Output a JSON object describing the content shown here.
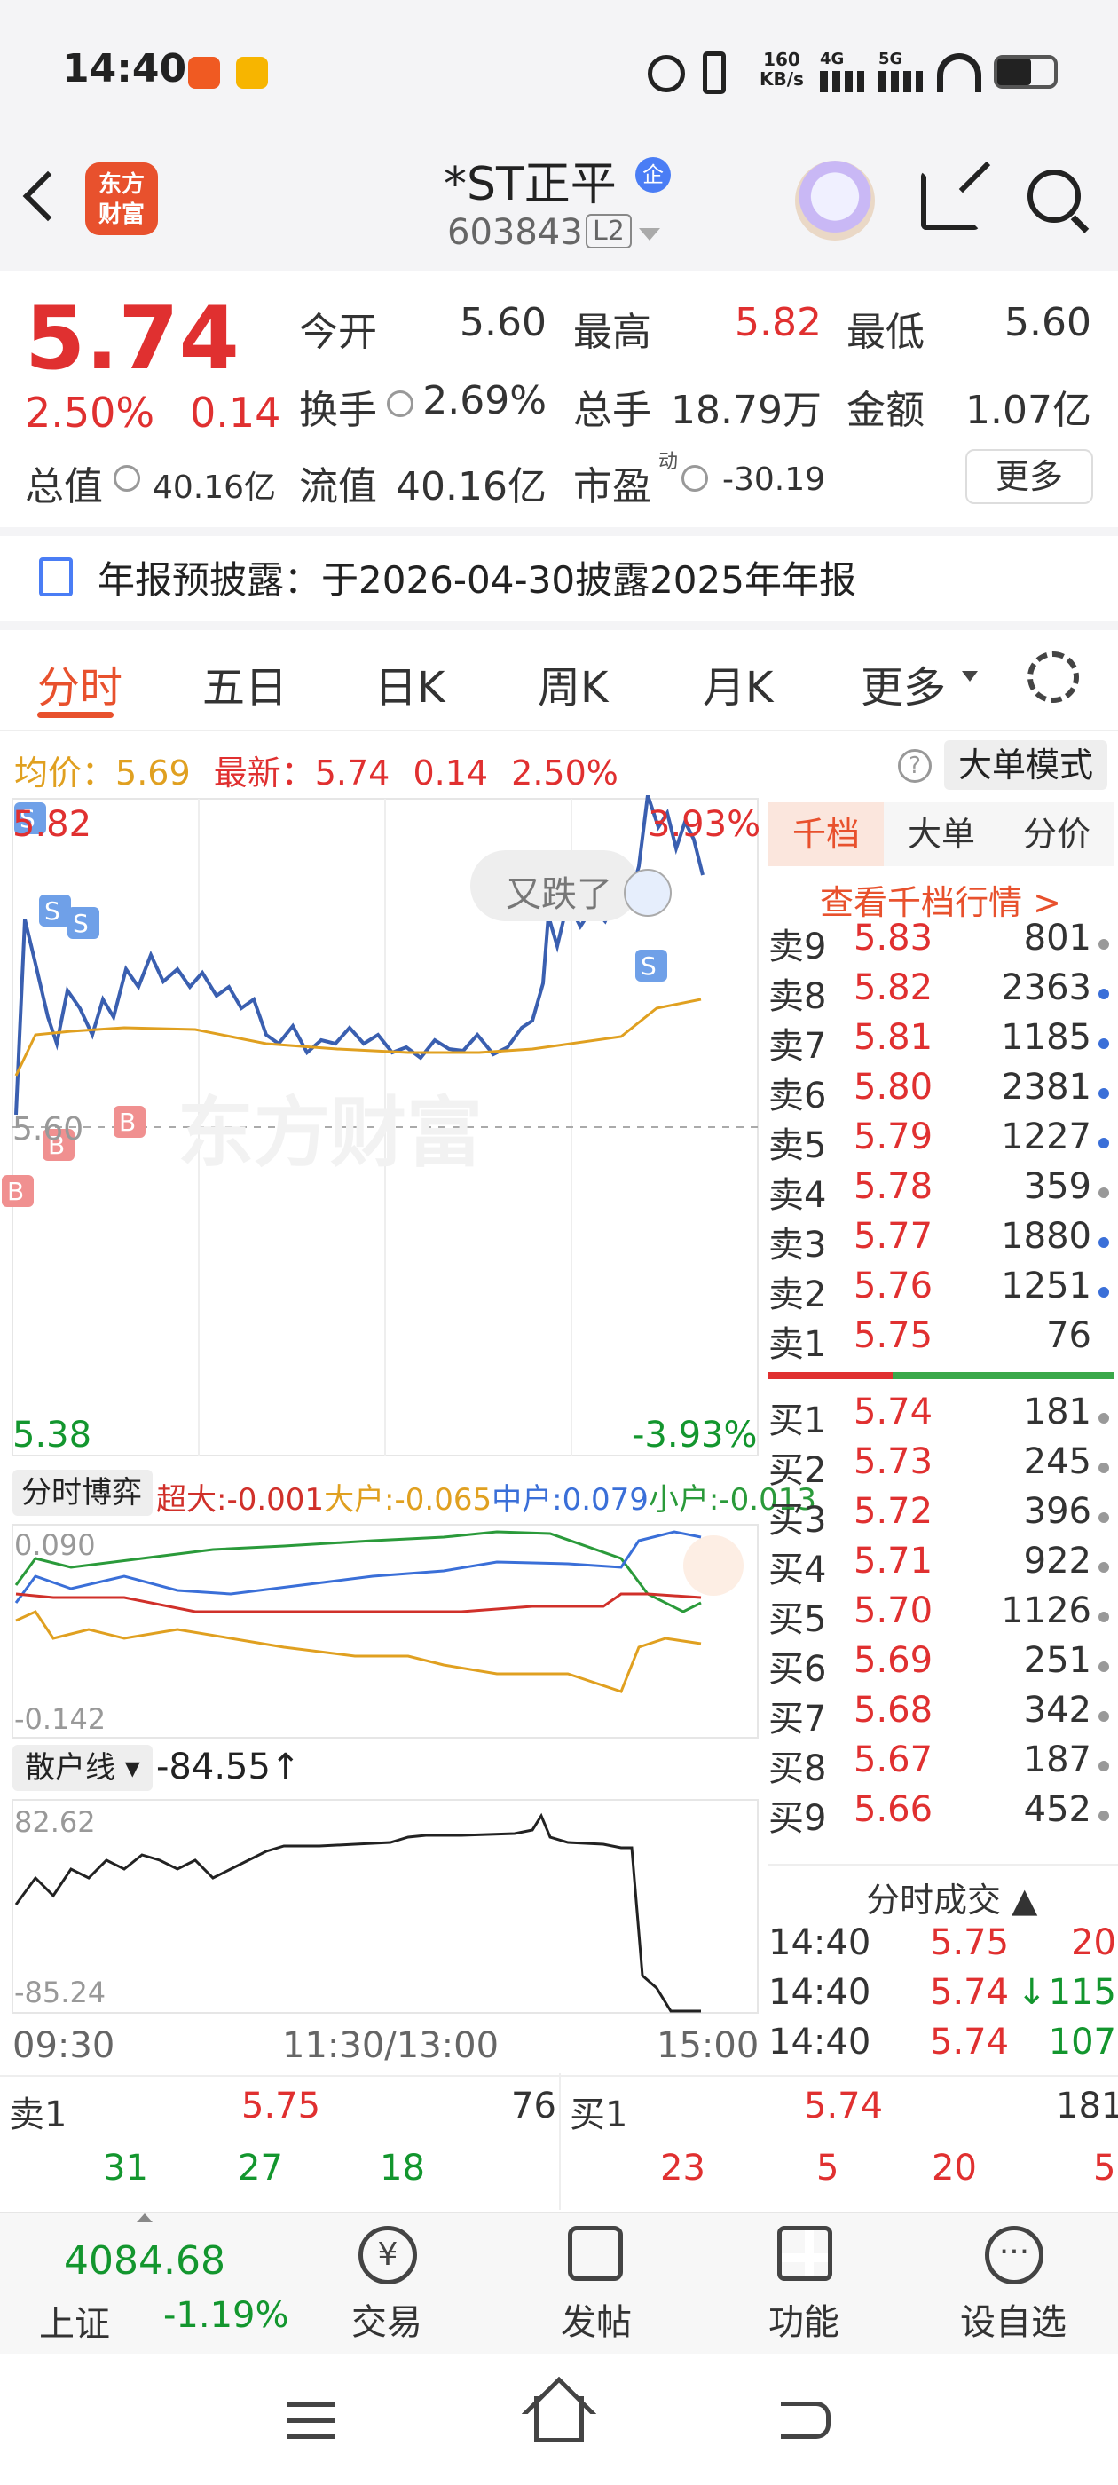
{
  "status": {
    "time": "14:40",
    "net_speed": "160",
    "net_unit": "KB/s",
    "sig1": "4G",
    "sig2": "5G"
  },
  "header": {
    "logo": "东方\n财富",
    "logo_line1": "东方",
    "logo_line2": "财富",
    "title": "*ST正平",
    "badge": "企",
    "code": "603843",
    "level": "L2"
  },
  "quote": {
    "price": "5.74",
    "change_pct": "2.50%",
    "change": "0.14",
    "open_label": "今开",
    "open": "5.60",
    "high_label": "最高",
    "high": "5.82",
    "low_label": "最低",
    "low": "5.60",
    "turnover_label": "换手",
    "turnover": "2.69%",
    "volume_label": "总手",
    "volume": "18.79万",
    "amount_label": "金额",
    "amount": "1.07亿",
    "mktcap_label": "总值",
    "mktcap": "40.16亿",
    "float_label": "流值",
    "float": "40.16亿",
    "pe_label": "市盈",
    "pe_sup": "动",
    "pe": "-30.19",
    "more": "更多"
  },
  "notice": "年报预披露：于2026-04-30披露2025年年报",
  "tabs": [
    "分时",
    "五日",
    "日K",
    "周K",
    "月K",
    "更多"
  ],
  "infobar": {
    "avg_label": "均价：",
    "avg": "5.69",
    "latest_label": "最新：",
    "latest": "5.74",
    "chg": "0.14",
    "pct": "2.50%",
    "mode": "大单模式"
  },
  "chart": {
    "top": "5.82",
    "top_pct": "3.93%",
    "mid": "5.60",
    "bottom": "5.38",
    "bottom_pct": "-3.93%",
    "bubble": "又跌了",
    "time_labels": [
      "09:30",
      "11:30/13:00",
      "15:00"
    ]
  },
  "flow": {
    "label": "分时博弈",
    "super": "超大:-0.001",
    "big": "大户:-0.065",
    "mid": "中户:0.079",
    "small": "小户:-0.013",
    "max": "0.090",
    "min": "-0.142"
  },
  "retail": {
    "label": "散户线",
    "value": "-84.55",
    "max": "82.62",
    "min": "-85.24"
  },
  "book_tabs": [
    "千档",
    "大单",
    "分价"
  ],
  "book_link": "查看千档行情 >",
  "asks": [
    {
      "label": "卖9",
      "price": "5.83",
      "vol": "801",
      "dot": "#999"
    },
    {
      "label": "卖8",
      "price": "5.82",
      "vol": "2363",
      "dot": "#3a6fd8"
    },
    {
      "label": "卖7",
      "price": "5.81",
      "vol": "1185",
      "dot": "#3a6fd8"
    },
    {
      "label": "卖6",
      "price": "5.80",
      "vol": "2381",
      "dot": "#3a6fd8"
    },
    {
      "label": "卖5",
      "price": "5.79",
      "vol": "1227",
      "dot": "#3a6fd8"
    },
    {
      "label": "卖4",
      "price": "5.78",
      "vol": "359",
      "dot": "#999"
    },
    {
      "label": "卖3",
      "price": "5.77",
      "vol": "1880",
      "dot": "#3a6fd8"
    },
    {
      "label": "卖2",
      "price": "5.76",
      "vol": "1251",
      "dot": "#3a6fd8"
    },
    {
      "label": "卖1",
      "price": "5.75",
      "vol": "76",
      "dot": ""
    }
  ],
  "bids": [
    {
      "label": "买1",
      "price": "5.74",
      "vol": "181",
      "dot": "#999"
    },
    {
      "label": "买2",
      "price": "5.73",
      "vol": "245",
      "dot": "#999"
    },
    {
      "label": "买3",
      "price": "5.72",
      "vol": "396",
      "dot": "#999"
    },
    {
      "label": "买4",
      "price": "5.71",
      "vol": "922",
      "dot": "#999"
    },
    {
      "label": "买5",
      "price": "5.70",
      "vol": "1126",
      "dot": "#999"
    },
    {
      "label": "买6",
      "price": "5.69",
      "vol": "251",
      "dot": "#999"
    },
    {
      "label": "买7",
      "price": "5.68",
      "vol": "342",
      "dot": "#999"
    },
    {
      "label": "买8",
      "price": "5.67",
      "vol": "187",
      "dot": "#999"
    },
    {
      "label": "买9",
      "price": "5.66",
      "vol": "452",
      "dot": "#999"
    }
  ],
  "trades_title": "分时成交",
  "trades": [
    {
      "time": "14:40",
      "price": "5.75",
      "vol": "20",
      "arrow": ""
    },
    {
      "time": "14:40",
      "price": "5.74",
      "vol": "115",
      "arrow": "↓"
    },
    {
      "time": "14:40",
      "price": "5.74",
      "vol": "107",
      "arrow": ""
    }
  ],
  "bottom_book": {
    "sell_label": "卖1",
    "sell_price": "5.75",
    "sell_vol": "76",
    "buy_label": "买1",
    "buy_price": "5.74",
    "buy_vol": "181",
    "sell_queue": [
      "31",
      "27",
      "18"
    ],
    "buy_queue": [
      "23",
      "5",
      "20",
      "5"
    ]
  },
  "index": {
    "value": "4084.68",
    "name": "上证",
    "pct": "-1.19%"
  },
  "nav": [
    "交易",
    "发帖",
    "功能",
    "设自选"
  ]
}
